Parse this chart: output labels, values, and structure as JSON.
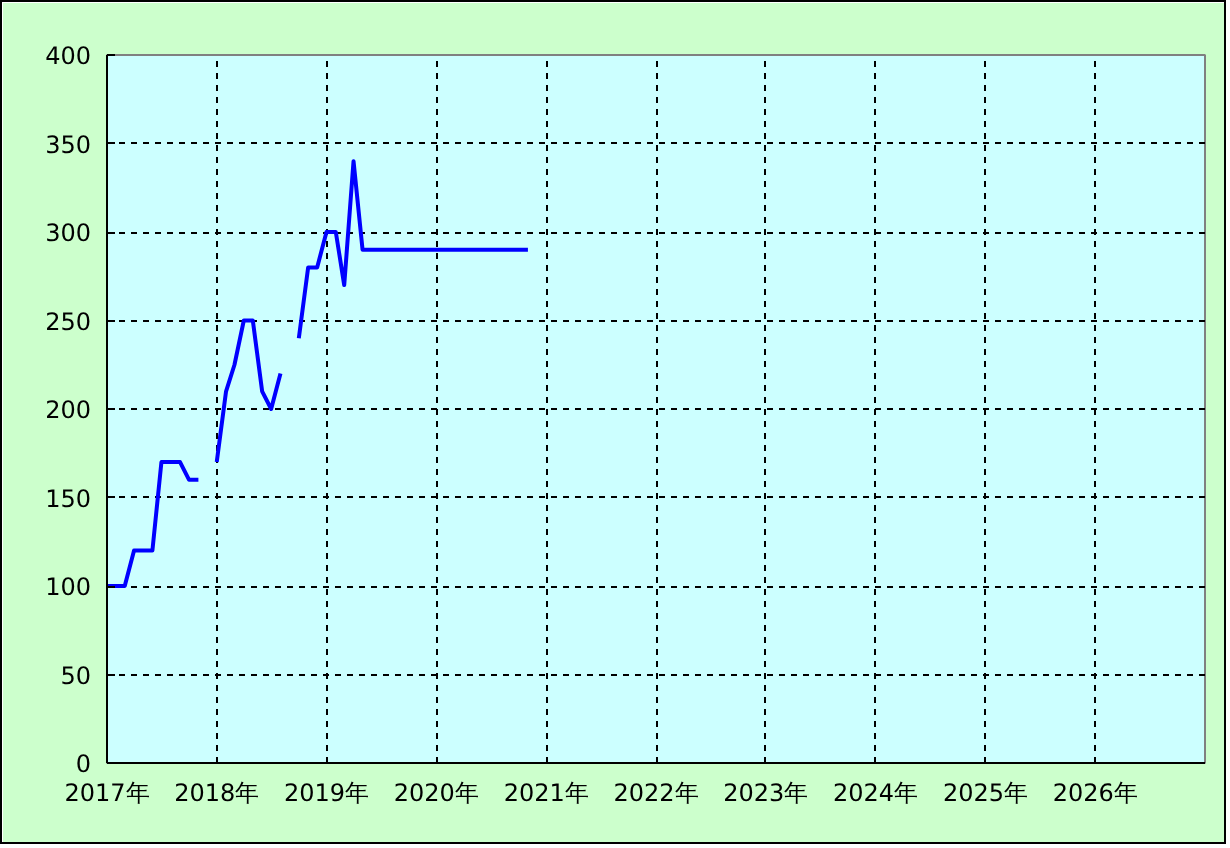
{
  "chart_data": {
    "type": "line",
    "xlim": [
      "2017-01",
      "2027-01"
    ],
    "xticks": [
      {
        "value": "2017-01",
        "label": "2017年"
      },
      {
        "value": "2018-01",
        "label": "2018年"
      },
      {
        "value": "2019-01",
        "label": "2019年"
      },
      {
        "value": "2020-01",
        "label": "2020年"
      },
      {
        "value": "2021-01",
        "label": "2021年"
      },
      {
        "value": "2022-01",
        "label": "2022年"
      },
      {
        "value": "2023-01",
        "label": "2023年"
      },
      {
        "value": "2024-01",
        "label": "2024年"
      },
      {
        "value": "2025-01",
        "label": "2025年"
      },
      {
        "value": "2026-01",
        "label": "2026年"
      }
    ],
    "ylim": [
      0,
      400
    ],
    "yticks": [
      0,
      50,
      100,
      150,
      200,
      250,
      300,
      350,
      400
    ],
    "grid": true,
    "series": [
      {
        "color": "#0000ff",
        "x": [
          "2017-01",
          "2017-02",
          "2017-03",
          "2017-04",
          "2017-05",
          "2017-06",
          "2017-07",
          "2017-08",
          "2017-09",
          "2017-10",
          "2017-11",
          "2017-12",
          "2018-01",
          "2018-02",
          "2018-03",
          "2018-04",
          "2018-05",
          "2018-06",
          "2018-07",
          "2018-08",
          "2018-09",
          "2018-10",
          "2018-11",
          "2018-12",
          "2019-01",
          "2019-02",
          "2019-03",
          "2019-04",
          "2019-05",
          "2019-06",
          "2019-07",
          "2019-08",
          "2019-09",
          "2019-10",
          "2019-11",
          "2019-12",
          "2020-01",
          "2020-02",
          "2020-03",
          "2020-04",
          "2020-05",
          "2020-06",
          "2020-07",
          "2020-08",
          "2020-09",
          "2020-10",
          "2020-11"
        ],
        "values": [
          100,
          100,
          100,
          120,
          120,
          120,
          170,
          170,
          170,
          160,
          160,
          null,
          170,
          210,
          225,
          250,
          250,
          210,
          200,
          220,
          null,
          240,
          280,
          280,
          300,
          300,
          270,
          340,
          290,
          290,
          290,
          290,
          290,
          290,
          290,
          290,
          290,
          290,
          290,
          290,
          290,
          290,
          290,
          290,
          290,
          290,
          290
        ]
      }
    ]
  }
}
